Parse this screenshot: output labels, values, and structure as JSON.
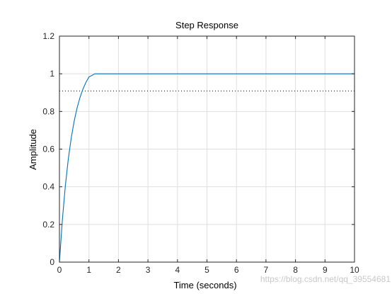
{
  "chart_data": {
    "type": "line",
    "title": "Step Response",
    "xlabel": "Time (seconds)",
    "ylabel": "Amplitude",
    "xlim": [
      0,
      10
    ],
    "ylim": [
      0,
      1.2
    ],
    "xticks": [
      "0",
      "1",
      "2",
      "3",
      "4",
      "5",
      "6",
      "7",
      "8",
      "9",
      "10"
    ],
    "yticks": [
      "0",
      "0.2",
      "0.4",
      "0.6",
      "0.8",
      "1",
      "1.2"
    ],
    "grid": true,
    "line_color": "#0072bd",
    "reference_line": {
      "y": 0.909,
      "style": "dotted",
      "color": "#000000"
    },
    "series": [
      {
        "x": [
          0,
          0.1,
          0.2,
          0.3,
          0.4,
          0.5,
          0.6,
          0.7,
          0.8,
          0.9,
          1.0,
          1.2,
          1.4,
          1.6,
          1.8,
          2.0,
          2.5,
          3.0,
          3.5,
          4.0,
          5.0,
          6.0,
          7.0,
          8.0,
          9.0,
          10.0
        ],
        "y": [
          0,
          0.226,
          0.405,
          0.547,
          0.66,
          0.749,
          0.82,
          0.876,
          0.92,
          0.955,
          0.983,
          1.0,
          1.0,
          1.0,
          1.0,
          1.0,
          1.0,
          1.0,
          1.0,
          1.0,
          1.0,
          1.0,
          1.0,
          1.0,
          1.0,
          1.0
        ]
      }
    ]
  },
  "watermark": "https://blog.csdn.net/qq_39554681"
}
